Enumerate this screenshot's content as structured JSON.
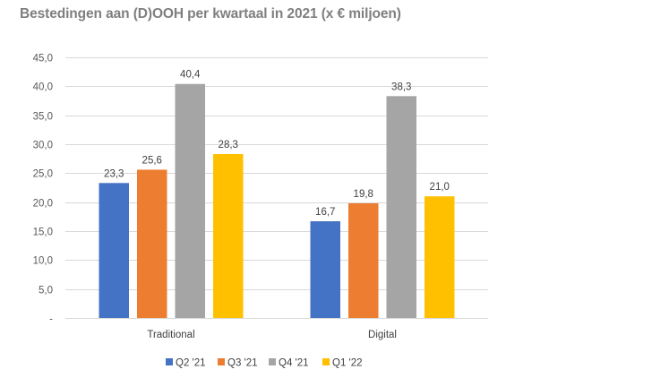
{
  "chart_data": {
    "type": "bar",
    "title": "Bestedingen aan (D)OOH per kwartaal in 2021 (x € miljoen)",
    "xlabel": "",
    "ylabel": "",
    "ylim": [
      0,
      45
    ],
    "ytick_step": 5,
    "yticks": [
      "-",
      "5,0",
      "10,0",
      "15,0",
      "20,0",
      "25,0",
      "30,0",
      "35,0",
      "40,0",
      "45,0"
    ],
    "grid": true,
    "legend_position": "bottom",
    "categories": [
      "Traditional",
      "Digital"
    ],
    "series": [
      {
        "name": "Q2 '21",
        "color": "#4472C4",
        "values": [
          23.3,
          16.7
        ],
        "labels": [
          "23,3",
          "16,7"
        ]
      },
      {
        "name": "Q3 '21",
        "color": "#ED7D31",
        "values": [
          25.6,
          19.8
        ],
        "labels": [
          "25,6",
          "19,8"
        ]
      },
      {
        "name": "Q4 '21",
        "color": "#A5A5A5",
        "values": [
          40.4,
          38.3
        ],
        "labels": [
          "40,4",
          "38,3"
        ]
      },
      {
        "name": "Q1 '22",
        "color": "#FFC000",
        "values": [
          28.3,
          21.0
        ],
        "labels": [
          "28,3",
          "21,0"
        ]
      }
    ]
  }
}
